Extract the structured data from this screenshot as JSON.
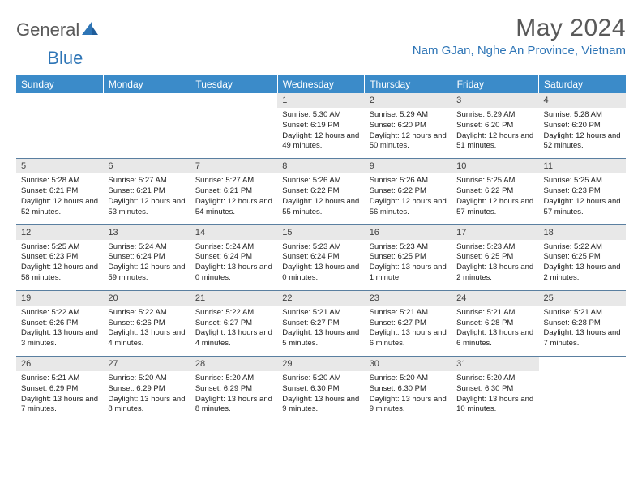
{
  "brand": {
    "general": "General",
    "blue": "Blue"
  },
  "title": "May 2024",
  "location": "Nam GJan, Nghe An Province, Vietnam",
  "colors": {
    "header_bg": "#3b8bc9",
    "header_text": "#ffffff",
    "brand_gray": "#595959",
    "brand_blue": "#2e75b6",
    "daynum_bg": "#e8e8e8",
    "row_border": "#5a7fa0"
  },
  "day_names": [
    "Sunday",
    "Monday",
    "Tuesday",
    "Wednesday",
    "Thursday",
    "Friday",
    "Saturday"
  ],
  "weeks": [
    [
      {
        "blank": true
      },
      {
        "blank": true
      },
      {
        "blank": true
      },
      {
        "num": "1",
        "sunrise": "5:30 AM",
        "sunset": "6:19 PM",
        "daylight": "12 hours and 49 minutes."
      },
      {
        "num": "2",
        "sunrise": "5:29 AM",
        "sunset": "6:20 PM",
        "daylight": "12 hours and 50 minutes."
      },
      {
        "num": "3",
        "sunrise": "5:29 AM",
        "sunset": "6:20 PM",
        "daylight": "12 hours and 51 minutes."
      },
      {
        "num": "4",
        "sunrise": "5:28 AM",
        "sunset": "6:20 PM",
        "daylight": "12 hours and 52 minutes."
      }
    ],
    [
      {
        "num": "5",
        "sunrise": "5:28 AM",
        "sunset": "6:21 PM",
        "daylight": "12 hours and 52 minutes."
      },
      {
        "num": "6",
        "sunrise": "5:27 AM",
        "sunset": "6:21 PM",
        "daylight": "12 hours and 53 minutes."
      },
      {
        "num": "7",
        "sunrise": "5:27 AM",
        "sunset": "6:21 PM",
        "daylight": "12 hours and 54 minutes."
      },
      {
        "num": "8",
        "sunrise": "5:26 AM",
        "sunset": "6:22 PM",
        "daylight": "12 hours and 55 minutes."
      },
      {
        "num": "9",
        "sunrise": "5:26 AM",
        "sunset": "6:22 PM",
        "daylight": "12 hours and 56 minutes."
      },
      {
        "num": "10",
        "sunrise": "5:25 AM",
        "sunset": "6:22 PM",
        "daylight": "12 hours and 57 minutes."
      },
      {
        "num": "11",
        "sunrise": "5:25 AM",
        "sunset": "6:23 PM",
        "daylight": "12 hours and 57 minutes."
      }
    ],
    [
      {
        "num": "12",
        "sunrise": "5:25 AM",
        "sunset": "6:23 PM",
        "daylight": "12 hours and 58 minutes."
      },
      {
        "num": "13",
        "sunrise": "5:24 AM",
        "sunset": "6:24 PM",
        "daylight": "12 hours and 59 minutes."
      },
      {
        "num": "14",
        "sunrise": "5:24 AM",
        "sunset": "6:24 PM",
        "daylight": "13 hours and 0 minutes."
      },
      {
        "num": "15",
        "sunrise": "5:23 AM",
        "sunset": "6:24 PM",
        "daylight": "13 hours and 0 minutes."
      },
      {
        "num": "16",
        "sunrise": "5:23 AM",
        "sunset": "6:25 PM",
        "daylight": "13 hours and 1 minute."
      },
      {
        "num": "17",
        "sunrise": "5:23 AM",
        "sunset": "6:25 PM",
        "daylight": "13 hours and 2 minutes."
      },
      {
        "num": "18",
        "sunrise": "5:22 AM",
        "sunset": "6:25 PM",
        "daylight": "13 hours and 2 minutes."
      }
    ],
    [
      {
        "num": "19",
        "sunrise": "5:22 AM",
        "sunset": "6:26 PM",
        "daylight": "13 hours and 3 minutes."
      },
      {
        "num": "20",
        "sunrise": "5:22 AM",
        "sunset": "6:26 PM",
        "daylight": "13 hours and 4 minutes."
      },
      {
        "num": "21",
        "sunrise": "5:22 AM",
        "sunset": "6:27 PM",
        "daylight": "13 hours and 4 minutes."
      },
      {
        "num": "22",
        "sunrise": "5:21 AM",
        "sunset": "6:27 PM",
        "daylight": "13 hours and 5 minutes."
      },
      {
        "num": "23",
        "sunrise": "5:21 AM",
        "sunset": "6:27 PM",
        "daylight": "13 hours and 6 minutes."
      },
      {
        "num": "24",
        "sunrise": "5:21 AM",
        "sunset": "6:28 PM",
        "daylight": "13 hours and 6 minutes."
      },
      {
        "num": "25",
        "sunrise": "5:21 AM",
        "sunset": "6:28 PM",
        "daylight": "13 hours and 7 minutes."
      }
    ],
    [
      {
        "num": "26",
        "sunrise": "5:21 AM",
        "sunset": "6:29 PM",
        "daylight": "13 hours and 7 minutes."
      },
      {
        "num": "27",
        "sunrise": "5:20 AM",
        "sunset": "6:29 PM",
        "daylight": "13 hours and 8 minutes."
      },
      {
        "num": "28",
        "sunrise": "5:20 AM",
        "sunset": "6:29 PM",
        "daylight": "13 hours and 8 minutes."
      },
      {
        "num": "29",
        "sunrise": "5:20 AM",
        "sunset": "6:30 PM",
        "daylight": "13 hours and 9 minutes."
      },
      {
        "num": "30",
        "sunrise": "5:20 AM",
        "sunset": "6:30 PM",
        "daylight": "13 hours and 9 minutes."
      },
      {
        "num": "31",
        "sunrise": "5:20 AM",
        "sunset": "6:30 PM",
        "daylight": "13 hours and 10 minutes."
      },
      {
        "blank": true
      }
    ]
  ],
  "labels": {
    "sunrise": "Sunrise:",
    "sunset": "Sunset:",
    "daylight": "Daylight:"
  }
}
